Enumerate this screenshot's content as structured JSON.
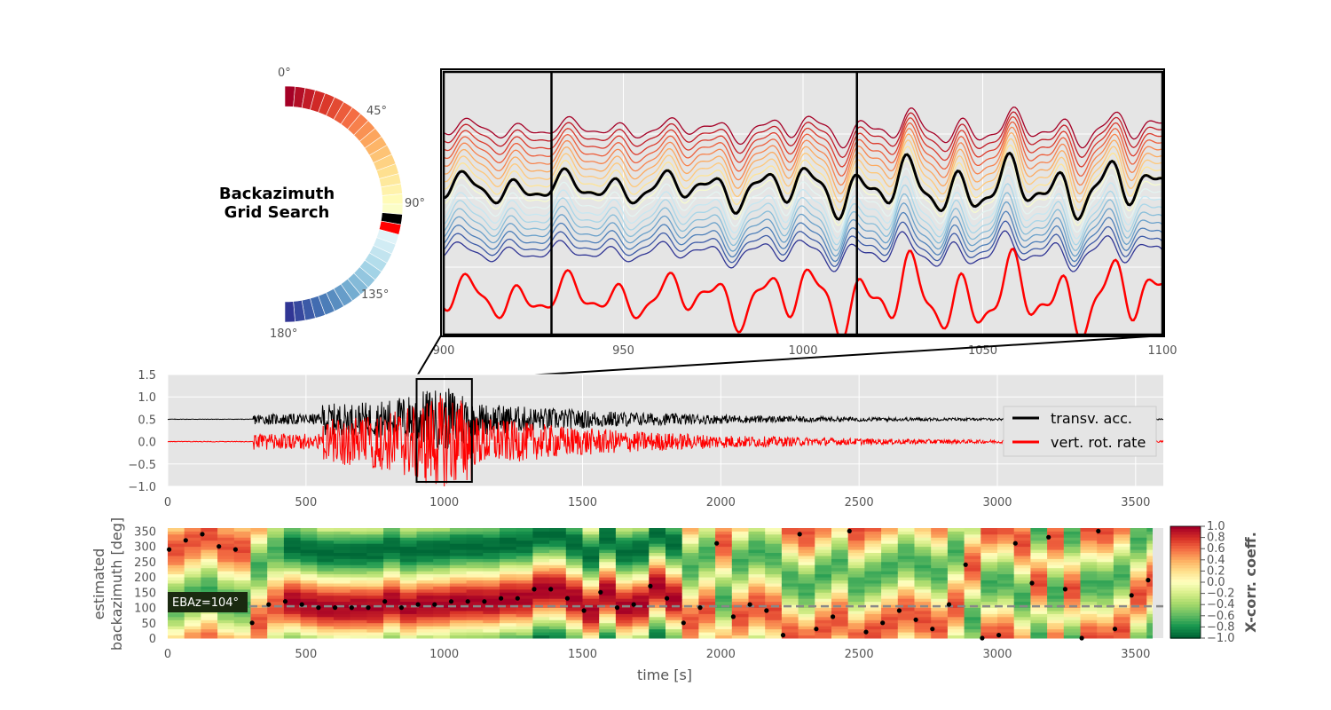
{
  "figure": {
    "title_line1": "Backazimuth",
    "title_line2": "Grid Search"
  },
  "chart_data": [
    {
      "type": "line",
      "name": "backazimuth_wheel",
      "tick_labels": [
        "0°",
        "45°",
        "90°",
        "135°",
        "180°"
      ],
      "n_segments": 36,
      "range_deg": [
        0,
        180
      ],
      "highlighted_deg": [
        100,
        105
      ],
      "highlight_colors": [
        "#000000",
        "#ff0000"
      ],
      "colormap": "RdYlBu"
    },
    {
      "type": "line",
      "name": "zoom_window",
      "xlim": [
        900,
        1100
      ],
      "x_ticks": [
        900,
        950,
        1000,
        1050,
        1100
      ],
      "x_tick_labels": [
        "900",
        "950",
        "1000",
        "1050",
        "1100"
      ],
      "markers_x": [
        930,
        1015
      ],
      "n_rotated_traces": 18,
      "series": [
        {
          "color": "#000000"
        },
        {
          "color": "#ff0000"
        }
      ]
    },
    {
      "type": "line",
      "name": "waveforms",
      "xlim": [
        0,
        3600
      ],
      "ylim": [
        -1.0,
        1.5
      ],
      "x_ticks": [
        0,
        500,
        1000,
        1500,
        2000,
        2500,
        3000,
        3500
      ],
      "x_tick_labels": [
        "0",
        "500",
        "1000",
        "1500",
        "2000",
        "2500",
        "3000",
        "3500"
      ],
      "y_ticks": [
        -1.0,
        -0.5,
        0.0,
        0.5,
        1.0,
        1.5
      ],
      "y_tick_labels": [
        "−1.0",
        "−0.5",
        "0.0",
        "0.5",
        "1.0",
        "1.5"
      ],
      "zoom_box": {
        "x": [
          900,
          1100
        ],
        "y": [
          -0.9,
          1.4
        ]
      },
      "legend_position": "right",
      "series": [
        {
          "name": "transv. acc.",
          "color": "#000000",
          "offset": 0.5,
          "onset_s": 310
        },
        {
          "name": "vert. rot. rate",
          "color": "#ff0000",
          "offset": 0.0,
          "onset_s": 310
        }
      ]
    },
    {
      "type": "heatmap",
      "name": "backazimuth_xcorr",
      "xlabel": "time [s]",
      "ylabel_line1": "estimated",
      "ylabel_line2": "backazimuth [deg]",
      "xlim": [
        0,
        3600
      ],
      "ylim": [
        0,
        360
      ],
      "x_ticks": [
        0,
        500,
        1000,
        1500,
        2000,
        2500,
        3000,
        3500
      ],
      "x_tick_labels": [
        "0",
        "500",
        "1000",
        "1500",
        "2000",
        "2500",
        "3000",
        "3500"
      ],
      "y_ticks": [
        0,
        50,
        100,
        150,
        200,
        250,
        300,
        350
      ],
      "y_tick_labels": [
        "0",
        "50",
        "100",
        "150",
        "200",
        "250",
        "300",
        "350"
      ],
      "colorbar_label": "X-corr. coeff.",
      "colorbar_ticks": [
        1.0,
        0.8,
        0.6,
        0.4,
        0.2,
        0.0,
        -0.2,
        -0.4,
        -0.6,
        -0.8,
        -1.0
      ],
      "colorbar_tick_labels": [
        "1.0",
        "0.8",
        "0.6",
        "0.4",
        "0.2",
        "0.0",
        "−0.2",
        "−0.4",
        "−0.6",
        "−0.8",
        "−1.0"
      ],
      "colormap": "RdYlGn_r",
      "window_s": 60,
      "n_windows": 60,
      "ebaz_label": "EBAz=104°",
      "ebaz_deg": 104,
      "max_xcorr_points": [
        [
          0,
          290
        ],
        [
          60,
          320
        ],
        [
          120,
          340
        ],
        [
          180,
          300
        ],
        [
          240,
          290
        ],
        [
          300,
          50
        ],
        [
          360,
          110
        ],
        [
          420,
          120
        ],
        [
          480,
          110
        ],
        [
          540,
          100
        ],
        [
          600,
          100
        ],
        [
          660,
          100
        ],
        [
          720,
          100
        ],
        [
          780,
          120
        ],
        [
          840,
          100
        ],
        [
          900,
          110
        ],
        [
          960,
          110
        ],
        [
          1020,
          120
        ],
        [
          1080,
          120
        ],
        [
          1140,
          120
        ],
        [
          1200,
          130
        ],
        [
          1260,
          130
        ],
        [
          1320,
          160
        ],
        [
          1380,
          160
        ],
        [
          1440,
          130
        ],
        [
          1500,
          90
        ],
        [
          1560,
          150
        ],
        [
          1620,
          100
        ],
        [
          1680,
          110
        ],
        [
          1740,
          170
        ],
        [
          1800,
          130
        ],
        [
          1860,
          50
        ],
        [
          1920,
          100
        ],
        [
          1980,
          310
        ],
        [
          2040,
          70
        ],
        [
          2100,
          110
        ],
        [
          2160,
          90
        ],
        [
          2220,
          10
        ],
        [
          2280,
          340
        ],
        [
          2340,
          30
        ],
        [
          2400,
          70
        ],
        [
          2460,
          350
        ],
        [
          2520,
          20
        ],
        [
          2580,
          50
        ],
        [
          2640,
          90
        ],
        [
          2700,
          60
        ],
        [
          2760,
          30
        ],
        [
          2820,
          110
        ],
        [
          2880,
          240
        ],
        [
          2940,
          0
        ],
        [
          3000,
          10
        ],
        [
          3060,
          310
        ],
        [
          3120,
          180
        ],
        [
          3180,
          330
        ],
        [
          3240,
          160
        ],
        [
          3300,
          0
        ],
        [
          3360,
          350
        ],
        [
          3420,
          30
        ],
        [
          3480,
          140
        ],
        [
          3540,
          190
        ]
      ]
    }
  ]
}
